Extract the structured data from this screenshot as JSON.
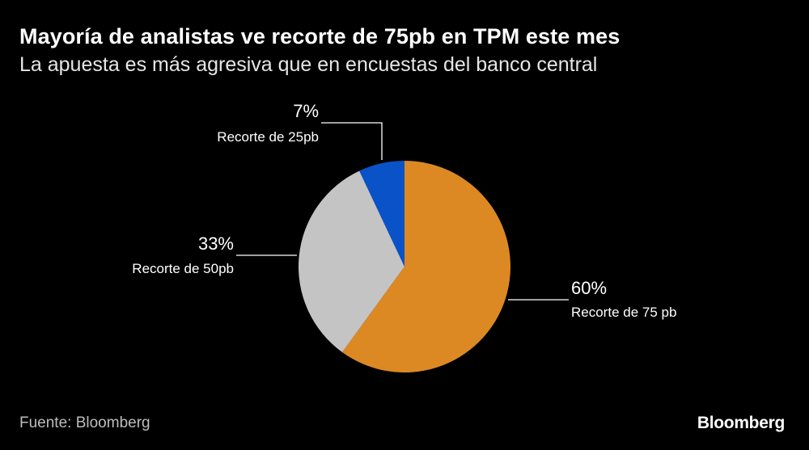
{
  "header": {
    "title": "Mayoría de analistas ve recorte de 75pb en TPM este mes",
    "subtitle": "La apuesta es más agresiva que en encuestas del banco central"
  },
  "footer": {
    "source": "Fuente: Bloomberg",
    "logo": "Bloomberg"
  },
  "chart_data": {
    "type": "pie",
    "title": "Mayoría de analistas ve recorte de 75pb en TPM este mes",
    "subtitle": "La apuesta es más agresiva que en encuestas del banco central",
    "start_angle_deg": 0,
    "direction": "clockwise",
    "slices": [
      {
        "label": "Recorte de 75 pb",
        "value": 60,
        "value_label": "60%",
        "color": "#DC8924"
      },
      {
        "label": "Recorte de 50pb",
        "value": 33,
        "value_label": "33%",
        "color": "#C4C4C4"
      },
      {
        "label": "Recorte de 25pb",
        "value": 7,
        "value_label": "7%",
        "color": "#0A52C8"
      }
    ]
  }
}
